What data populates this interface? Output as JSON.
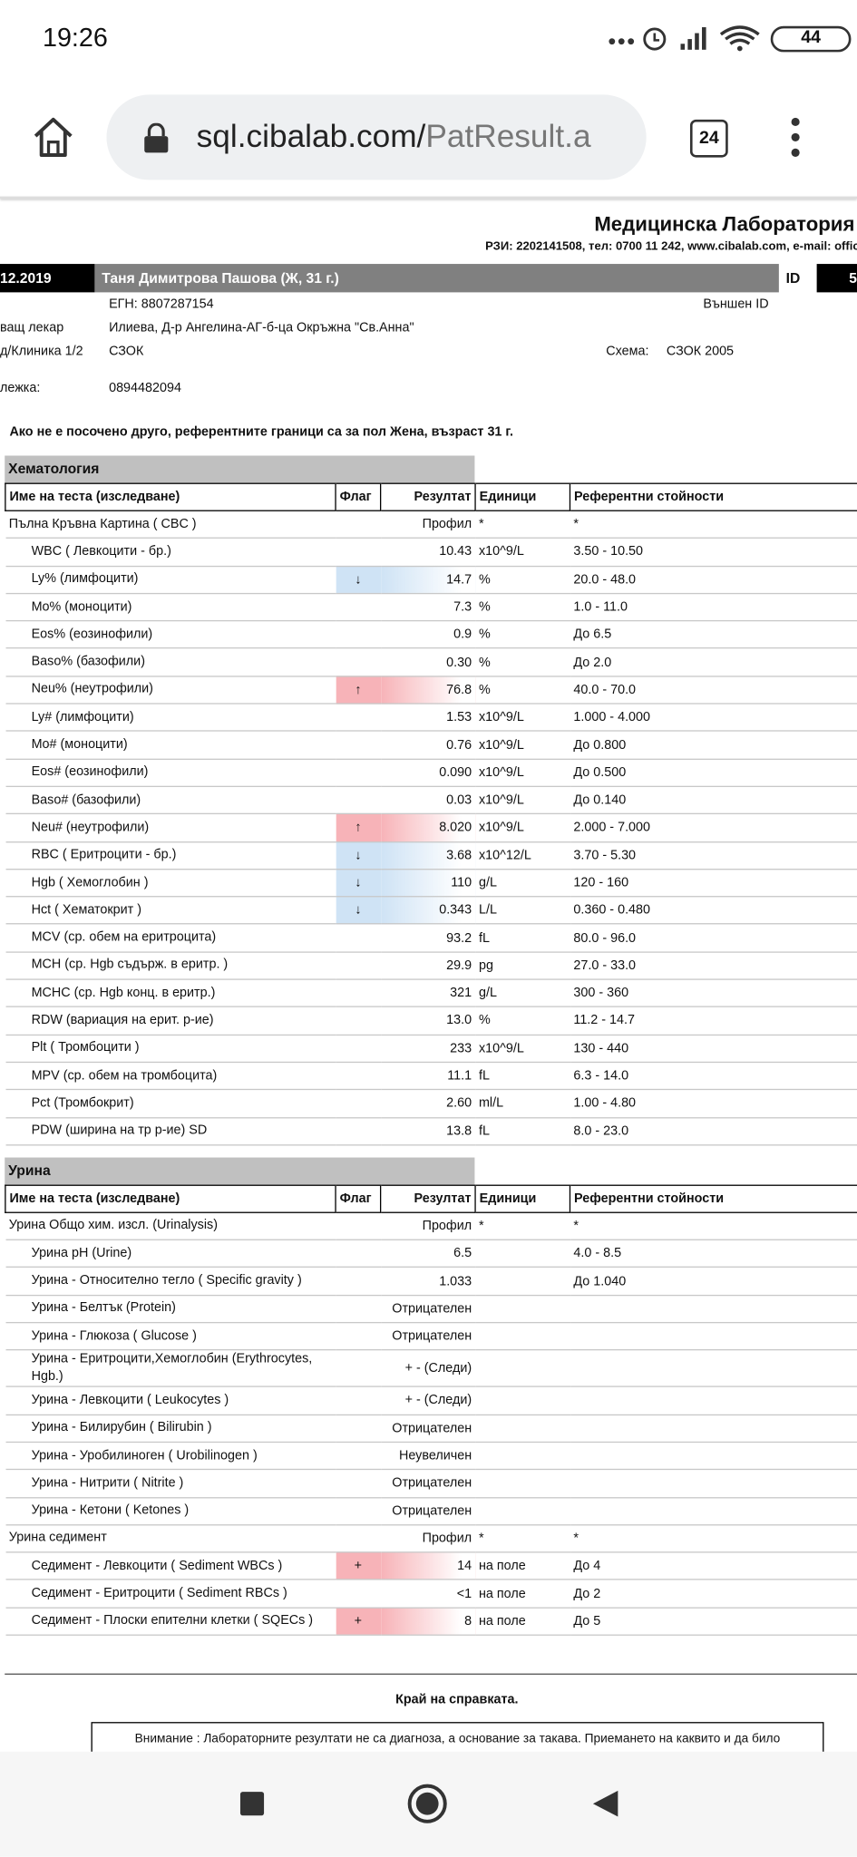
{
  "status_bar": {
    "time": "19:26",
    "battery": "44"
  },
  "browser": {
    "url_host": "sql.cibalab.com/",
    "url_path": "PatResult.a",
    "tab_count": "24"
  },
  "header": {
    "lab_title": "Медицинска Лаборатория",
    "contact": "РЗИ: 2202141508, тел: 0700 11 242, www.cibalab.com, e-mail: offic"
  },
  "patient": {
    "date": "12.2019",
    "name": "Таня Димитрова Пашова (Ж, 31 г.)",
    "id_label": "ID",
    "id_value": "5",
    "egn": "ЕГН: 8807287154",
    "external_id_label": "Външен ID",
    "doctor_label": "ващ лекар",
    "doctor": "Илиева, Д-р Ангелина-АГ-б-ца Окръжна \"Св.Анна\"",
    "clinic_label": "д/Клиника 1/2",
    "clinic": "СЗОК",
    "scheme_label": "Схема:",
    "scheme": "СЗОК 2005",
    "phone_label": "лежка:",
    "phone": "0894482094"
  },
  "note": "Ако не е посочено друго, референтните граници са за пол Жена, възраст 31 г.",
  "sections": [
    {
      "title": "Хематология",
      "headers": [
        "Име на теста (изследване)",
        "Флаг",
        "Резултат",
        "Единици",
        "Референтни стойности"
      ],
      "rows": [
        {
          "name": "Пълна Кръвна Картина ( CBC )",
          "result": "Профил",
          "unit": "*",
          "ref": "*",
          "group": true
        },
        {
          "name": "WBC ( Левкоцити - бр.)",
          "result": "10.43",
          "unit": "x10^9/L",
          "ref": "3.50 - 10.50"
        },
        {
          "name": "Ly% (лимфоцити)",
          "flag": "↓",
          "flag_color": "#cfe3f5",
          "result": "14.7",
          "unit": "%",
          "ref": "20.0 - 48.0"
        },
        {
          "name": "Mo% (моноцити)",
          "result": "7.3",
          "unit": "%",
          "ref": "1.0 - 11.0"
        },
        {
          "name": "Eos% (еозинофили)",
          "result": "0.9",
          "unit": "%",
          "ref": "До 6.5"
        },
        {
          "name": "Baso% (базофили)",
          "result": "0.30",
          "unit": "%",
          "ref": "До 2.0"
        },
        {
          "name": "Neu% (неутрофили)",
          "flag": "↑",
          "flag_color": "#f7b3b8",
          "result": "76.8",
          "unit": "%",
          "ref": "40.0 - 70.0"
        },
        {
          "name": "Ly# (лимфоцити)",
          "result": "1.53",
          "unit": "x10^9/L",
          "ref": "1.000 - 4.000"
        },
        {
          "name": "Mo# (моноцити)",
          "result": "0.76",
          "unit": "x10^9/L",
          "ref": "До 0.800"
        },
        {
          "name": "Eos# (еозинофили)",
          "result": "0.090",
          "unit": "x10^9/L",
          "ref": "До 0.500"
        },
        {
          "name": "Baso# (базофили)",
          "result": "0.03",
          "unit": "x10^9/L",
          "ref": "До 0.140"
        },
        {
          "name": "Neu# (неутрофили)",
          "flag": "↑",
          "flag_color": "#f7b3b8",
          "result": "8.020",
          "unit": "x10^9/L",
          "ref": "2.000 - 7.000"
        },
        {
          "name": "RBC ( Еритроцити - бр.)",
          "flag": "↓",
          "flag_color": "#cfe3f5",
          "result": "3.68",
          "unit": "x10^12/L",
          "ref": "3.70 - 5.30"
        },
        {
          "name": "Hgb ( Хемоглобин )",
          "flag": "↓",
          "flag_color": "#cfe3f5",
          "result": "110",
          "unit": "g/L",
          "ref": "120 - 160"
        },
        {
          "name": "Hct ( Хематокрит )",
          "flag": "↓",
          "flag_color": "#cfe3f5",
          "result": "0.343",
          "unit": "L/L",
          "ref": "0.360 - 0.480"
        },
        {
          "name": "MCV (ср. обем на еритроцита)",
          "result": "93.2",
          "unit": "fL",
          "ref": "80.0 - 96.0"
        },
        {
          "name": "MCH (ср. Hgb съдърж. в еритр. )",
          "result": "29.9",
          "unit": "pg",
          "ref": "27.0 - 33.0"
        },
        {
          "name": "MCHC (ср. Hgb конц. в еритр.)",
          "result": "321",
          "unit": "g/L",
          "ref": "300 - 360"
        },
        {
          "name": "RDW (вариация на ерит. р-ие)",
          "result": "13.0",
          "unit": "%",
          "ref": "11.2 - 14.7"
        },
        {
          "name": "Plt ( Тромбоцити )",
          "result": "233",
          "unit": "x10^9/L",
          "ref": "130 - 440"
        },
        {
          "name": "MPV (ср. обем на тромбоцита)",
          "result": "11.1",
          "unit": "fL",
          "ref": "6.3 - 14.0"
        },
        {
          "name": "Pct (Тромбокрит)",
          "result": "2.60",
          "unit": "ml/L",
          "ref": "1.00 - 4.80"
        },
        {
          "name": "PDW (ширина на тр р-ие) SD",
          "result": "13.8",
          "unit": "fL",
          "ref": "8.0 - 23.0"
        }
      ]
    },
    {
      "title": "Урина",
      "headers": [
        "Име на теста (изследване)",
        "Флаг",
        "Резултат",
        "Единици",
        "Референтни стойности"
      ],
      "rows": [
        {
          "name": "Урина Общо хим. изсл. (Urinalysis)",
          "result": "Профил",
          "unit": "*",
          "ref": "*",
          "group": true
        },
        {
          "name": "Урина pH (Urine)",
          "result": "6.5",
          "ref": "4.0 - 8.5"
        },
        {
          "name": "Урина - Относително тегло ( Specific gravity )",
          "result": "1.033",
          "ref": "До 1.040"
        },
        {
          "name": "Урина - Белтък (Protein)",
          "result": "Отрицателен"
        },
        {
          "name": "Урина - Глюкоза ( Glucose )",
          "result": "Отрицателен"
        },
        {
          "name": "Урина - Еритроцити,Хемоглобин (Erythrocytes, Hgb.)",
          "result": "+ - (Следи)"
        },
        {
          "name": "Урина - Левкоцити ( Leukocytes )",
          "result": "+ - (Следи)"
        },
        {
          "name": "Урина - Билирубин ( Bilirubin )",
          "result": "Отрицателен"
        },
        {
          "name": "Урина - Уробилиноген ( Urobilinogen )",
          "result": "Неувеличен"
        },
        {
          "name": "Урина - Нитрити ( Nitrite )",
          "result": "Отрицателен"
        },
        {
          "name": "Урина - Кетони ( Ketones )",
          "result": "Отрицателен"
        },
        {
          "name": "Урина седимент",
          "result": "Профил",
          "unit": "*",
          "ref": "*",
          "group": true
        },
        {
          "name": "Седимент - Левкоцити ( Sediment WBCs )",
          "flag": "+",
          "flag_color": "#f7b3b8",
          "result": "14",
          "unit": "на поле",
          "ref": "До 4"
        },
        {
          "name": "Седимент - Еритроцити ( Sediment RBCs )",
          "result": "<1",
          "unit": "на поле",
          "ref": "До 2"
        },
        {
          "name": "Седимент - Плоски епителни клетки ( SQECs )",
          "flag": "+",
          "flag_color": "#f7b3b8",
          "result": "8",
          "unit": "на поле",
          "ref": "До 5"
        }
      ]
    }
  ],
  "footer": {
    "end": "Край на справката.",
    "warning": "Внимание : Лабораторните резултати не са диагноза, а основание за такава. Приемането на каквито и да било"
  }
}
